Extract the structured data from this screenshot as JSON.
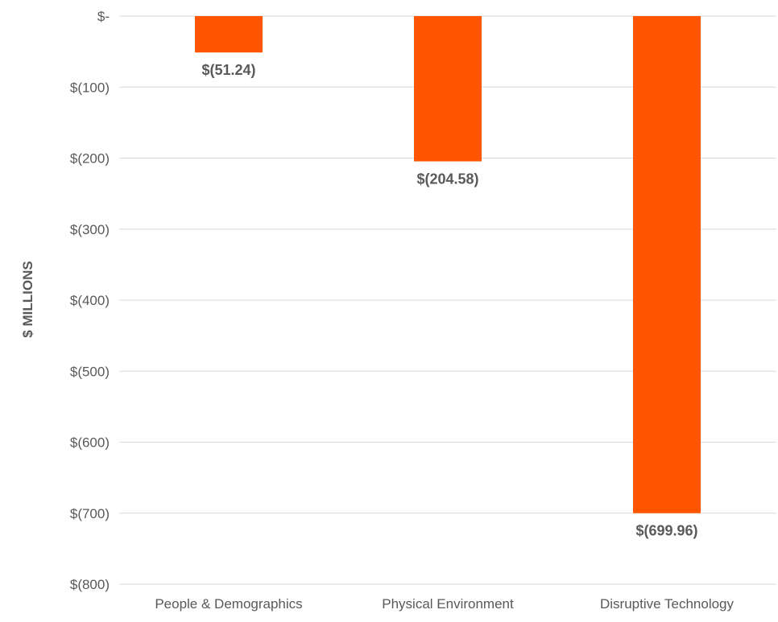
{
  "chart_data": {
    "type": "bar",
    "title": "",
    "xlabel": "",
    "ylabel": "$ MILLIONS",
    "categories": [
      "People & Demographics",
      "Physical Environment",
      "Disruptive Technology"
    ],
    "values": [
      -51.24,
      -204.58,
      -699.96
    ],
    "data_labels": [
      "$(51.24)",
      "$(204.58)",
      "$(699.96)"
    ],
    "ylim": [
      -800,
      0
    ],
    "yticks": [
      0,
      -100,
      -200,
      -300,
      -400,
      -500,
      -600,
      -700,
      -800
    ],
    "ytick_labels": [
      "$-",
      "$(100)",
      "$(200)",
      "$(300)",
      "$(400)",
      "$(500)",
      "$(600)",
      "$(700)",
      "$(800)"
    ],
    "grid": true,
    "legend": "none",
    "colors": {
      "bar": "#ff5500",
      "grid": "#d9d9d9",
      "text": "#595959"
    }
  }
}
